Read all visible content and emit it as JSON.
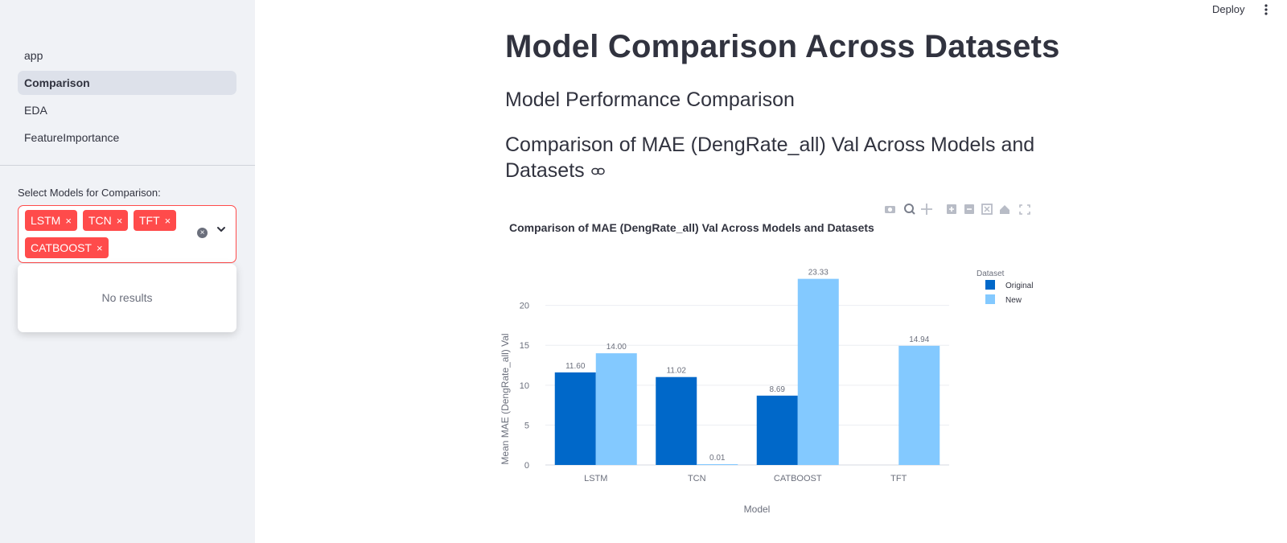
{
  "sidebar": {
    "nav": [
      {
        "label": "app",
        "active": false
      },
      {
        "label": "Comparison",
        "active": true
      },
      {
        "label": "EDA",
        "active": false
      },
      {
        "label": "FeatureImportance",
        "active": false
      }
    ],
    "select_label": "Select Models for Comparison:",
    "selected_models": [
      "LSTM",
      "TCN",
      "TFT",
      "CATBOOST"
    ],
    "remove_symbol": "×",
    "dropdown_message": "No results",
    "accent_color": "#ff4b4b"
  },
  "header": {
    "deploy_label": "Deploy"
  },
  "main": {
    "title": "Model Comparison Across Datasets",
    "subtitle": "Model Performance Comparison",
    "section_heading": "Comparison of MAE (DengRate_all) Val Across Models and Datasets"
  },
  "chart_data": {
    "type": "bar",
    "title": "Comparison of MAE (DengRate_all) Val Across Models and Datasets",
    "xlabel": "Model",
    "ylabel": "Mean MAE (DengRate_all) Val",
    "categories": [
      "LSTM",
      "TCN",
      "CATBOOST",
      "TFT"
    ],
    "series": [
      {
        "name": "Original",
        "color": "#0068c9",
        "values": [
          11.6,
          11.02,
          8.69,
          null
        ]
      },
      {
        "name": "New",
        "color": "#83c9ff",
        "values": [
          14.0,
          0.01,
          23.33,
          14.94
        ]
      }
    ],
    "data_labels": [
      [
        "11.60",
        "11.02",
        "8.69",
        ""
      ],
      [
        "14.00",
        "0.01",
        "23.33",
        "14.94"
      ]
    ],
    "y_ticks": [
      0,
      5,
      10,
      15,
      20
    ],
    "ylim": [
      0,
      24.5
    ],
    "legend_title": "Dataset",
    "legend_position": "top-right",
    "grid": true
  }
}
